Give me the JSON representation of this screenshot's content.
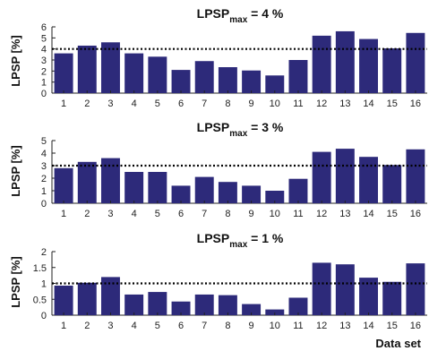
{
  "chart_data": [
    {
      "type": "bar",
      "title_main": "LPSP",
      "title_sub": "max",
      "title_rest": " = 4 %",
      "ylabel": "LPSP [%]",
      "xlabel": "",
      "ylim": [
        0,
        6
      ],
      "yticks": [
        "0",
        "1",
        "2",
        "3",
        "4",
        "5",
        "6"
      ],
      "categories": [
        "1",
        "2",
        "3",
        "4",
        "5",
        "6",
        "7",
        "8",
        "9",
        "10",
        "11",
        "12",
        "13",
        "14",
        "15",
        "16"
      ],
      "values": [
        3.6,
        4.3,
        4.6,
        3.6,
        3.3,
        2.1,
        2.9,
        2.35,
        2.05,
        1.6,
        3.0,
        5.2,
        5.6,
        4.9,
        4.05,
        5.45
      ],
      "threshold": 4,
      "bar_color": "#2d2a7a"
    },
    {
      "type": "bar",
      "title_main": "LPSP",
      "title_sub": "max",
      "title_rest": " = 3 %",
      "ylabel": "LPSP [%]",
      "xlabel": "",
      "ylim": [
        0,
        5
      ],
      "yticks": [
        "0",
        "1",
        "2",
        "3",
        "4",
        "5"
      ],
      "categories": [
        "1",
        "2",
        "3",
        "4",
        "5",
        "6",
        "7",
        "8",
        "9",
        "10",
        "11",
        "12",
        "13",
        "14",
        "15",
        "16"
      ],
      "values": [
        2.8,
        3.3,
        3.6,
        2.5,
        2.5,
        1.4,
        2.1,
        1.7,
        1.4,
        1.0,
        1.95,
        4.1,
        4.35,
        3.7,
        3.05,
        4.3
      ],
      "threshold": 3,
      "bar_color": "#2d2a7a"
    },
    {
      "type": "bar",
      "title_main": "LPSP",
      "title_sub": "max",
      "title_rest": " = 1 %",
      "ylabel": "LPSP [%]",
      "xlabel": "Data set",
      "ylim": [
        0,
        2
      ],
      "yticks": [
        "0",
        "0.5",
        "1",
        "1.5",
        "2"
      ],
      "categories": [
        "1",
        "2",
        "3",
        "4",
        "5",
        "6",
        "7",
        "8",
        "9",
        "10",
        "11",
        "12",
        "13",
        "14",
        "15",
        "16"
      ],
      "values": [
        0.93,
        1.02,
        1.2,
        0.65,
        0.73,
        0.43,
        0.65,
        0.63,
        0.35,
        0.18,
        0.55,
        1.65,
        1.6,
        1.18,
        1.05,
        1.63
      ],
      "threshold": 1,
      "bar_color": "#2d2a7a"
    }
  ]
}
